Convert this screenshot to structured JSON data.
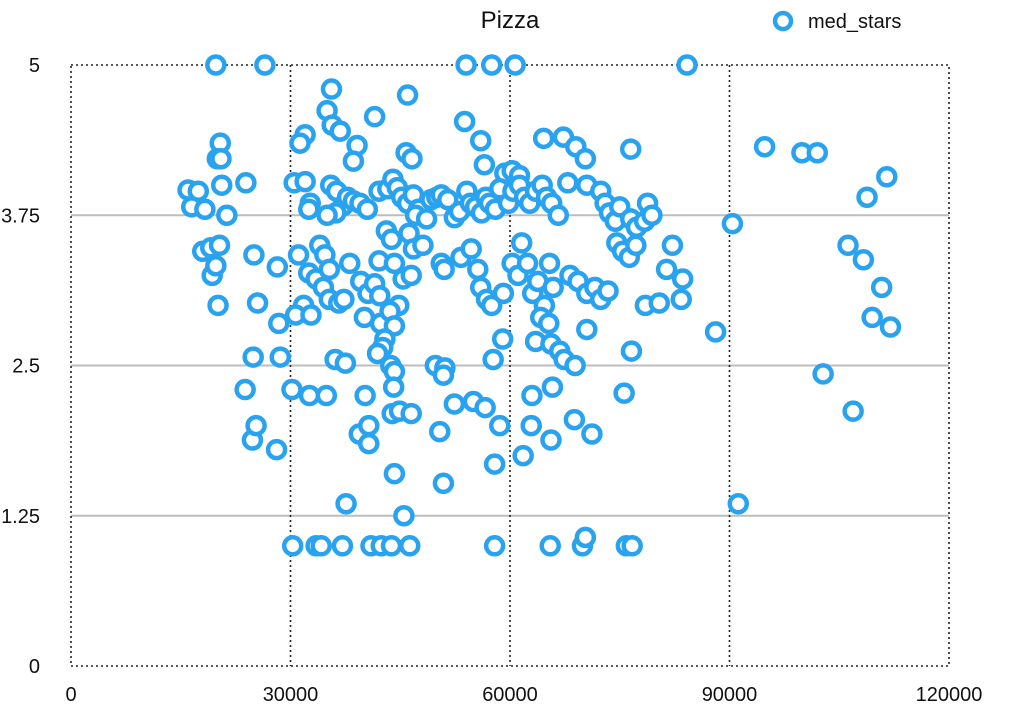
{
  "chart_data": {
    "type": "scatter",
    "title": "Pizza",
    "xlabel": "",
    "ylabel": "",
    "xlim": [
      0,
      120000
    ],
    "ylim": [
      0,
      5
    ],
    "x_ticks": [
      0,
      30000,
      60000,
      90000,
      120000
    ],
    "x_tick_labels": [
      "0",
      "30000",
      "60000",
      "90000",
      "120000"
    ],
    "y_ticks": [
      0,
      1.25,
      2.5,
      3.75,
      5
    ],
    "y_tick_labels": [
      "0",
      "1.25",
      "2.5",
      "3.75",
      "5"
    ],
    "legend": {
      "position": "top-right"
    },
    "grid": {
      "y": "solid",
      "x": "dotted"
    },
    "series": [
      {
        "name": "med_stars",
        "color": "#29a3ef",
        "marker": "hollow-circle",
        "points": [
          [
            19800,
            5
          ],
          [
            26500,
            5
          ],
          [
            54000,
            5
          ],
          [
            57500,
            5
          ],
          [
            60700,
            5
          ],
          [
            84200,
            5
          ],
          [
            35600,
            4.8
          ],
          [
            46000,
            4.75
          ],
          [
            35000,
            4.62
          ],
          [
            35700,
            4.5
          ],
          [
            36800,
            4.45
          ],
          [
            41500,
            4.57
          ],
          [
            53800,
            4.53
          ],
          [
            20400,
            4.35
          ],
          [
            32000,
            4.42
          ],
          [
            31300,
            4.35
          ],
          [
            39100,
            4.33
          ],
          [
            20000,
            4.22
          ],
          [
            20500,
            4.22
          ],
          [
            38600,
            4.2
          ],
          [
            45800,
            4.27
          ],
          [
            46600,
            4.22
          ],
          [
            56000,
            4.37
          ],
          [
            64600,
            4.39
          ],
          [
            67300,
            4.4
          ],
          [
            69000,
            4.32
          ],
          [
            70300,
            4.22
          ],
          [
            76500,
            4.3
          ],
          [
            56500,
            4.17
          ],
          [
            59300,
            4.1
          ],
          [
            60300,
            4.12
          ],
          [
            61300,
            4.08
          ],
          [
            94800,
            4.32
          ],
          [
            99900,
            4.27
          ],
          [
            102000,
            4.27
          ],
          [
            111500,
            4.07
          ],
          [
            16000,
            3.96
          ],
          [
            17400,
            3.95
          ],
          [
            16500,
            3.82
          ],
          [
            18300,
            3.8
          ],
          [
            20600,
            4.0
          ],
          [
            23900,
            4.02
          ],
          [
            21300,
            3.75
          ],
          [
            30500,
            4.02
          ],
          [
            32000,
            4.03
          ],
          [
            32700,
            3.85
          ],
          [
            32500,
            3.8
          ],
          [
            35500,
            4.0
          ],
          [
            36300,
            3.95
          ],
          [
            37200,
            3.83
          ],
          [
            36200,
            3.77
          ],
          [
            35000,
            3.75
          ],
          [
            37800,
            3.9
          ],
          [
            38600,
            3.87
          ],
          [
            39500,
            3.85
          ],
          [
            40500,
            3.8
          ],
          [
            42100,
            3.95
          ],
          [
            43300,
            3.97
          ],
          [
            44000,
            4.05
          ],
          [
            44600,
            3.98
          ],
          [
            45200,
            3.9
          ],
          [
            46000,
            3.85
          ],
          [
            46800,
            3.92
          ],
          [
            47500,
            3.8
          ],
          [
            47100,
            3.75
          ],
          [
            48600,
            3.72
          ],
          [
            49200,
            3.88
          ],
          [
            50000,
            3.9
          ],
          [
            50600,
            3.92
          ],
          [
            51500,
            3.88
          ],
          [
            52400,
            3.73
          ],
          [
            53100,
            3.78
          ],
          [
            54100,
            3.95
          ],
          [
            54600,
            3.85
          ],
          [
            55300,
            3.82
          ],
          [
            56100,
            3.77
          ],
          [
            56700,
            3.9
          ],
          [
            57200,
            3.85
          ],
          [
            58000,
            3.8
          ],
          [
            58600,
            3.97
          ],
          [
            59800,
            3.85
          ],
          [
            60400,
            3.95
          ],
          [
            61300,
            4.0
          ],
          [
            62000,
            3.9
          ],
          [
            62700,
            3.85
          ],
          [
            63500,
            3.95
          ],
          [
            64400,
            4.0
          ],
          [
            65000,
            3.9
          ],
          [
            65700,
            3.85
          ],
          [
            66600,
            3.75
          ],
          [
            67900,
            4.02
          ],
          [
            70500,
            4.0
          ],
          [
            72400,
            3.95
          ],
          [
            73000,
            3.85
          ],
          [
            73600,
            3.77
          ],
          [
            74400,
            3.7
          ],
          [
            75000,
            3.82
          ],
          [
            76500,
            3.72
          ],
          [
            77300,
            3.65
          ],
          [
            78400,
            3.7
          ],
          [
            78800,
            3.85
          ],
          [
            79400,
            3.75
          ],
          [
            90400,
            3.68
          ],
          [
            108800,
            3.9
          ],
          [
            18000,
            3.45
          ],
          [
            19100,
            3.48
          ],
          [
            20300,
            3.5
          ],
          [
            19300,
            3.25
          ],
          [
            19800,
            3.33
          ],
          [
            20100,
            3.0
          ],
          [
            25000,
            3.42
          ],
          [
            25500,
            3.02
          ],
          [
            28200,
            3.32
          ],
          [
            31100,
            3.42
          ],
          [
            31800,
            3.0
          ],
          [
            32500,
            3.27
          ],
          [
            33500,
            3.22
          ],
          [
            34000,
            3.5
          ],
          [
            34700,
            3.42
          ],
          [
            35300,
            3.3
          ],
          [
            34500,
            3.15
          ],
          [
            35300,
            3.05
          ],
          [
            36600,
            3.02
          ],
          [
            37300,
            3.05
          ],
          [
            38100,
            3.35
          ],
          [
            39600,
            3.2
          ],
          [
            40600,
            3.1
          ],
          [
            41500,
            3.18
          ],
          [
            42200,
            3.08
          ],
          [
            42100,
            3.37
          ],
          [
            43100,
            3.62
          ],
          [
            43800,
            3.55
          ],
          [
            44200,
            3.35
          ],
          [
            45400,
            3.22
          ],
          [
            44800,
            3.0
          ],
          [
            46200,
            3.6
          ],
          [
            46800,
            3.47
          ],
          [
            46500,
            3.25
          ],
          [
            48100,
            3.5
          ],
          [
            50600,
            3.35
          ],
          [
            51000,
            3.3
          ],
          [
            53300,
            3.4
          ],
          [
            54700,
            3.47
          ],
          [
            55600,
            3.3
          ],
          [
            56000,
            3.15
          ],
          [
            56800,
            3.05
          ],
          [
            57500,
            3.0
          ],
          [
            59100,
            3.1
          ],
          [
            60300,
            3.35
          ],
          [
            61100,
            3.25
          ],
          [
            61600,
            3.52
          ],
          [
            62400,
            3.35
          ],
          [
            63100,
            3.1
          ],
          [
            63800,
            3.2
          ],
          [
            64700,
            3.0
          ],
          [
            65400,
            3.35
          ],
          [
            65900,
            3.15
          ],
          [
            64200,
            2.9
          ],
          [
            68200,
            3.25
          ],
          [
            69300,
            3.2
          ],
          [
            70500,
            3.1
          ],
          [
            71600,
            3.15
          ],
          [
            72400,
            3.05
          ],
          [
            73400,
            3.12
          ],
          [
            74600,
            3.52
          ],
          [
            75400,
            3.45
          ],
          [
            76300,
            3.4
          ],
          [
            77200,
            3.5
          ],
          [
            78500,
            3.0
          ],
          [
            80400,
            3.02
          ],
          [
            81400,
            3.3
          ],
          [
            82200,
            3.5
          ],
          [
            83400,
            3.05
          ],
          [
            83600,
            3.22
          ],
          [
            106200,
            3.5
          ],
          [
            108300,
            3.38
          ],
          [
            110800,
            3.15
          ],
          [
            28400,
            2.85
          ],
          [
            30700,
            2.92
          ],
          [
            32800,
            2.92
          ],
          [
            40100,
            2.9
          ],
          [
            42300,
            2.85
          ],
          [
            43600,
            2.95
          ],
          [
            44200,
            2.83
          ],
          [
            42900,
            2.72
          ],
          [
            42600,
            2.65
          ],
          [
            41900,
            2.6
          ],
          [
            43700,
            2.5
          ],
          [
            44200,
            2.45
          ],
          [
            36100,
            2.55
          ],
          [
            37500,
            2.52
          ],
          [
            24900,
            2.57
          ],
          [
            28600,
            2.57
          ],
          [
            49800,
            2.5
          ],
          [
            51100,
            2.48
          ],
          [
            50900,
            2.42
          ],
          [
            57700,
            2.55
          ],
          [
            59000,
            2.72
          ],
          [
            63500,
            2.7
          ],
          [
            65600,
            2.68
          ],
          [
            65300,
            2.85
          ],
          [
            66800,
            2.62
          ],
          [
            67400,
            2.55
          ],
          [
            68900,
            2.5
          ],
          [
            70500,
            2.8
          ],
          [
            76600,
            2.62
          ],
          [
            88100,
            2.78
          ],
          [
            109500,
            2.9
          ],
          [
            112000,
            2.82
          ],
          [
            102800,
            2.43
          ],
          [
            23800,
            2.3
          ],
          [
            30200,
            2.3
          ],
          [
            32600,
            2.25
          ],
          [
            34900,
            2.25
          ],
          [
            40200,
            2.25
          ],
          [
            44100,
            2.32
          ],
          [
            43900,
            2.1
          ],
          [
            44900,
            2.12
          ],
          [
            46500,
            2.1
          ],
          [
            52400,
            2.18
          ],
          [
            55000,
            2.2
          ],
          [
            56600,
            2.15
          ],
          [
            63000,
            2.25
          ],
          [
            65800,
            2.32
          ],
          [
            75600,
            2.27
          ],
          [
            106900,
            2.12
          ],
          [
            24800,
            1.88
          ],
          [
            25300,
            2.0
          ],
          [
            28100,
            1.8
          ],
          [
            39400,
            1.93
          ],
          [
            40700,
            1.85
          ],
          [
            40700,
            2.0
          ],
          [
            50400,
            1.95
          ],
          [
            58600,
            2.0
          ],
          [
            62900,
            2.0
          ],
          [
            57900,
            1.68
          ],
          [
            61800,
            1.75
          ],
          [
            65600,
            1.88
          ],
          [
            68800,
            2.05
          ],
          [
            71200,
            1.93
          ],
          [
            44200,
            1.6
          ],
          [
            50900,
            1.52
          ],
          [
            37600,
            1.35
          ],
          [
            45500,
            1.25
          ],
          [
            91200,
            1.35
          ],
          [
            30300,
            1.0
          ],
          [
            33500,
            1.0
          ],
          [
            34200,
            1.0
          ],
          [
            37100,
            1.0
          ],
          [
            41000,
            1.0
          ],
          [
            42400,
            1.0
          ],
          [
            43800,
            1.0
          ],
          [
            46300,
            1.0
          ],
          [
            57900,
            1.0
          ],
          [
            65500,
            1.0
          ],
          [
            69900,
            1.0
          ],
          [
            70300,
            1.07
          ],
          [
            75900,
            1.0
          ],
          [
            76700,
            1.0
          ]
        ]
      }
    ]
  }
}
